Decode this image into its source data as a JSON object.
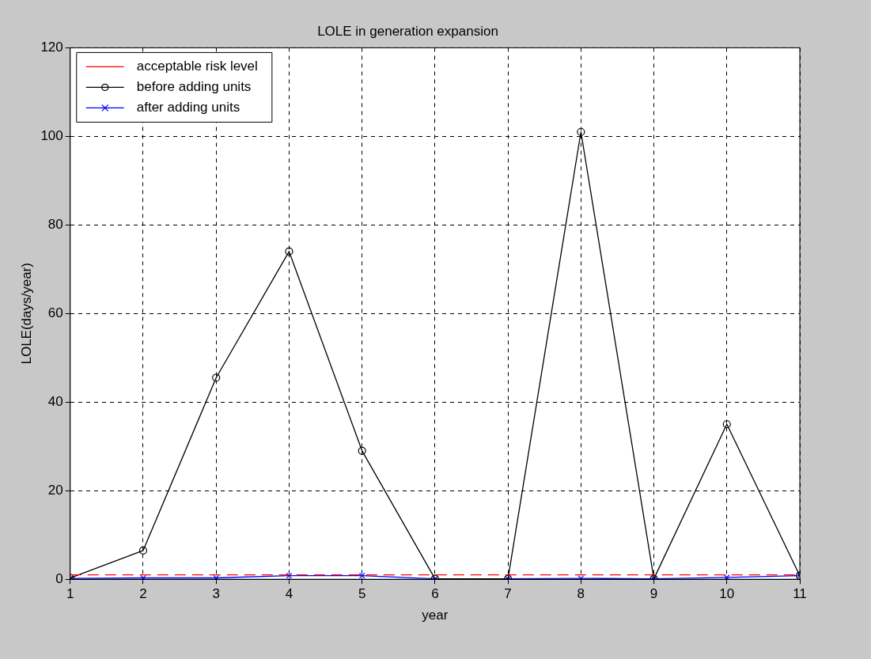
{
  "chart_data": {
    "type": "line",
    "title": "LOLE in generation expansion",
    "xlabel": "year",
    "ylabel": "LOLE(days/year)",
    "x": [
      1,
      2,
      3,
      4,
      5,
      6,
      7,
      8,
      9,
      10,
      11
    ],
    "series": [
      {
        "name": "acceptable risk level",
        "color": "#ff0000",
        "values": [
          1,
          1,
          1,
          1,
          1,
          1,
          1,
          1,
          1,
          1,
          1
        ],
        "marker": "none",
        "line_style": "dashed"
      },
      {
        "name": "before adding units",
        "color": "#000000",
        "values": [
          0.3,
          6.5,
          45.5,
          74,
          29,
          0.1,
          0.1,
          101,
          0.1,
          35,
          0.8
        ],
        "marker": "circle",
        "line_style": "solid"
      },
      {
        "name": "after adding units",
        "color": "#0000ff",
        "values": [
          0.2,
          0.3,
          0.3,
          0.8,
          0.8,
          0.1,
          0.1,
          0.2,
          0.1,
          0.4,
          0.8
        ],
        "marker": "cross",
        "line_style": "solid"
      }
    ],
    "xlim": [
      1,
      11
    ],
    "xticks": [
      1,
      2,
      3,
      4,
      5,
      6,
      7,
      8,
      9,
      10,
      11
    ],
    "ylim": [
      0,
      120
    ],
    "yticks": [
      0,
      20,
      40,
      60,
      80,
      100,
      120
    ],
    "grid": true,
    "legend": "top left"
  }
}
